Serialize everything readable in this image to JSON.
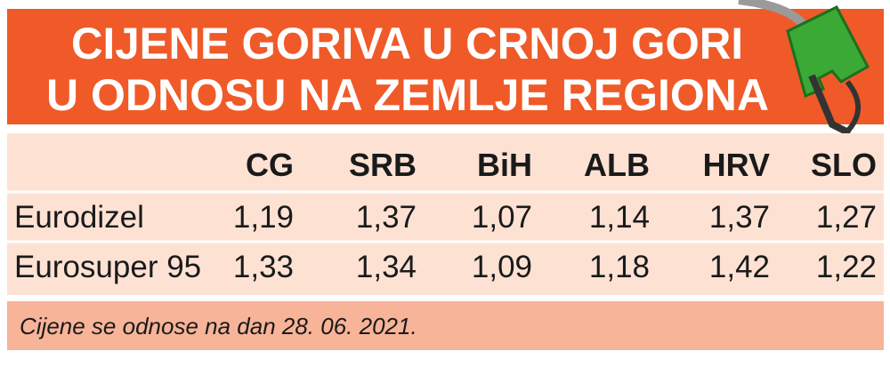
{
  "header": {
    "title": [
      "CIJENE GORIVA U CRNOJ GORI",
      "U ODNOSU NA ZEMLJE REGIONA"
    ]
  },
  "table": {
    "columns": [
      "CG",
      "SRB",
      "BiH",
      "ALB",
      "HRV",
      "SLO"
    ],
    "rows": [
      {
        "label": "Eurodizel",
        "cells": [
          "1,19",
          "1,37",
          "1,07",
          "1,14",
          "1,37",
          "1,27"
        ]
      },
      {
        "label": "Eurosuper 95",
        "cells": [
          "1,33",
          "1,34",
          "1,09",
          "1,18",
          "1,42",
          "1,22"
        ]
      }
    ]
  },
  "footer": {
    "note": "Cijene se odnose na dan 28. 06. 2021."
  }
}
